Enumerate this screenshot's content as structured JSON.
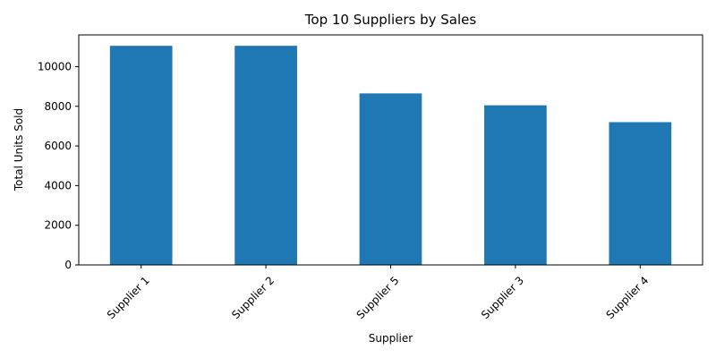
{
  "chart_data": {
    "type": "bar",
    "title": "Top 10 Suppliers by Sales",
    "xlabel": "Supplier",
    "ylabel": "Total Units Sold",
    "categories": [
      "Supplier 1",
      "Supplier 2",
      "Supplier 5",
      "Supplier 3",
      "Supplier 4"
    ],
    "values": [
      11050,
      11050,
      8650,
      8050,
      7200
    ],
    "ylim": [
      0,
      11600
    ],
    "yticks": [
      0,
      2000,
      4000,
      6000,
      8000,
      10000
    ],
    "bar_color": "#1f77b4",
    "grid": false
  }
}
